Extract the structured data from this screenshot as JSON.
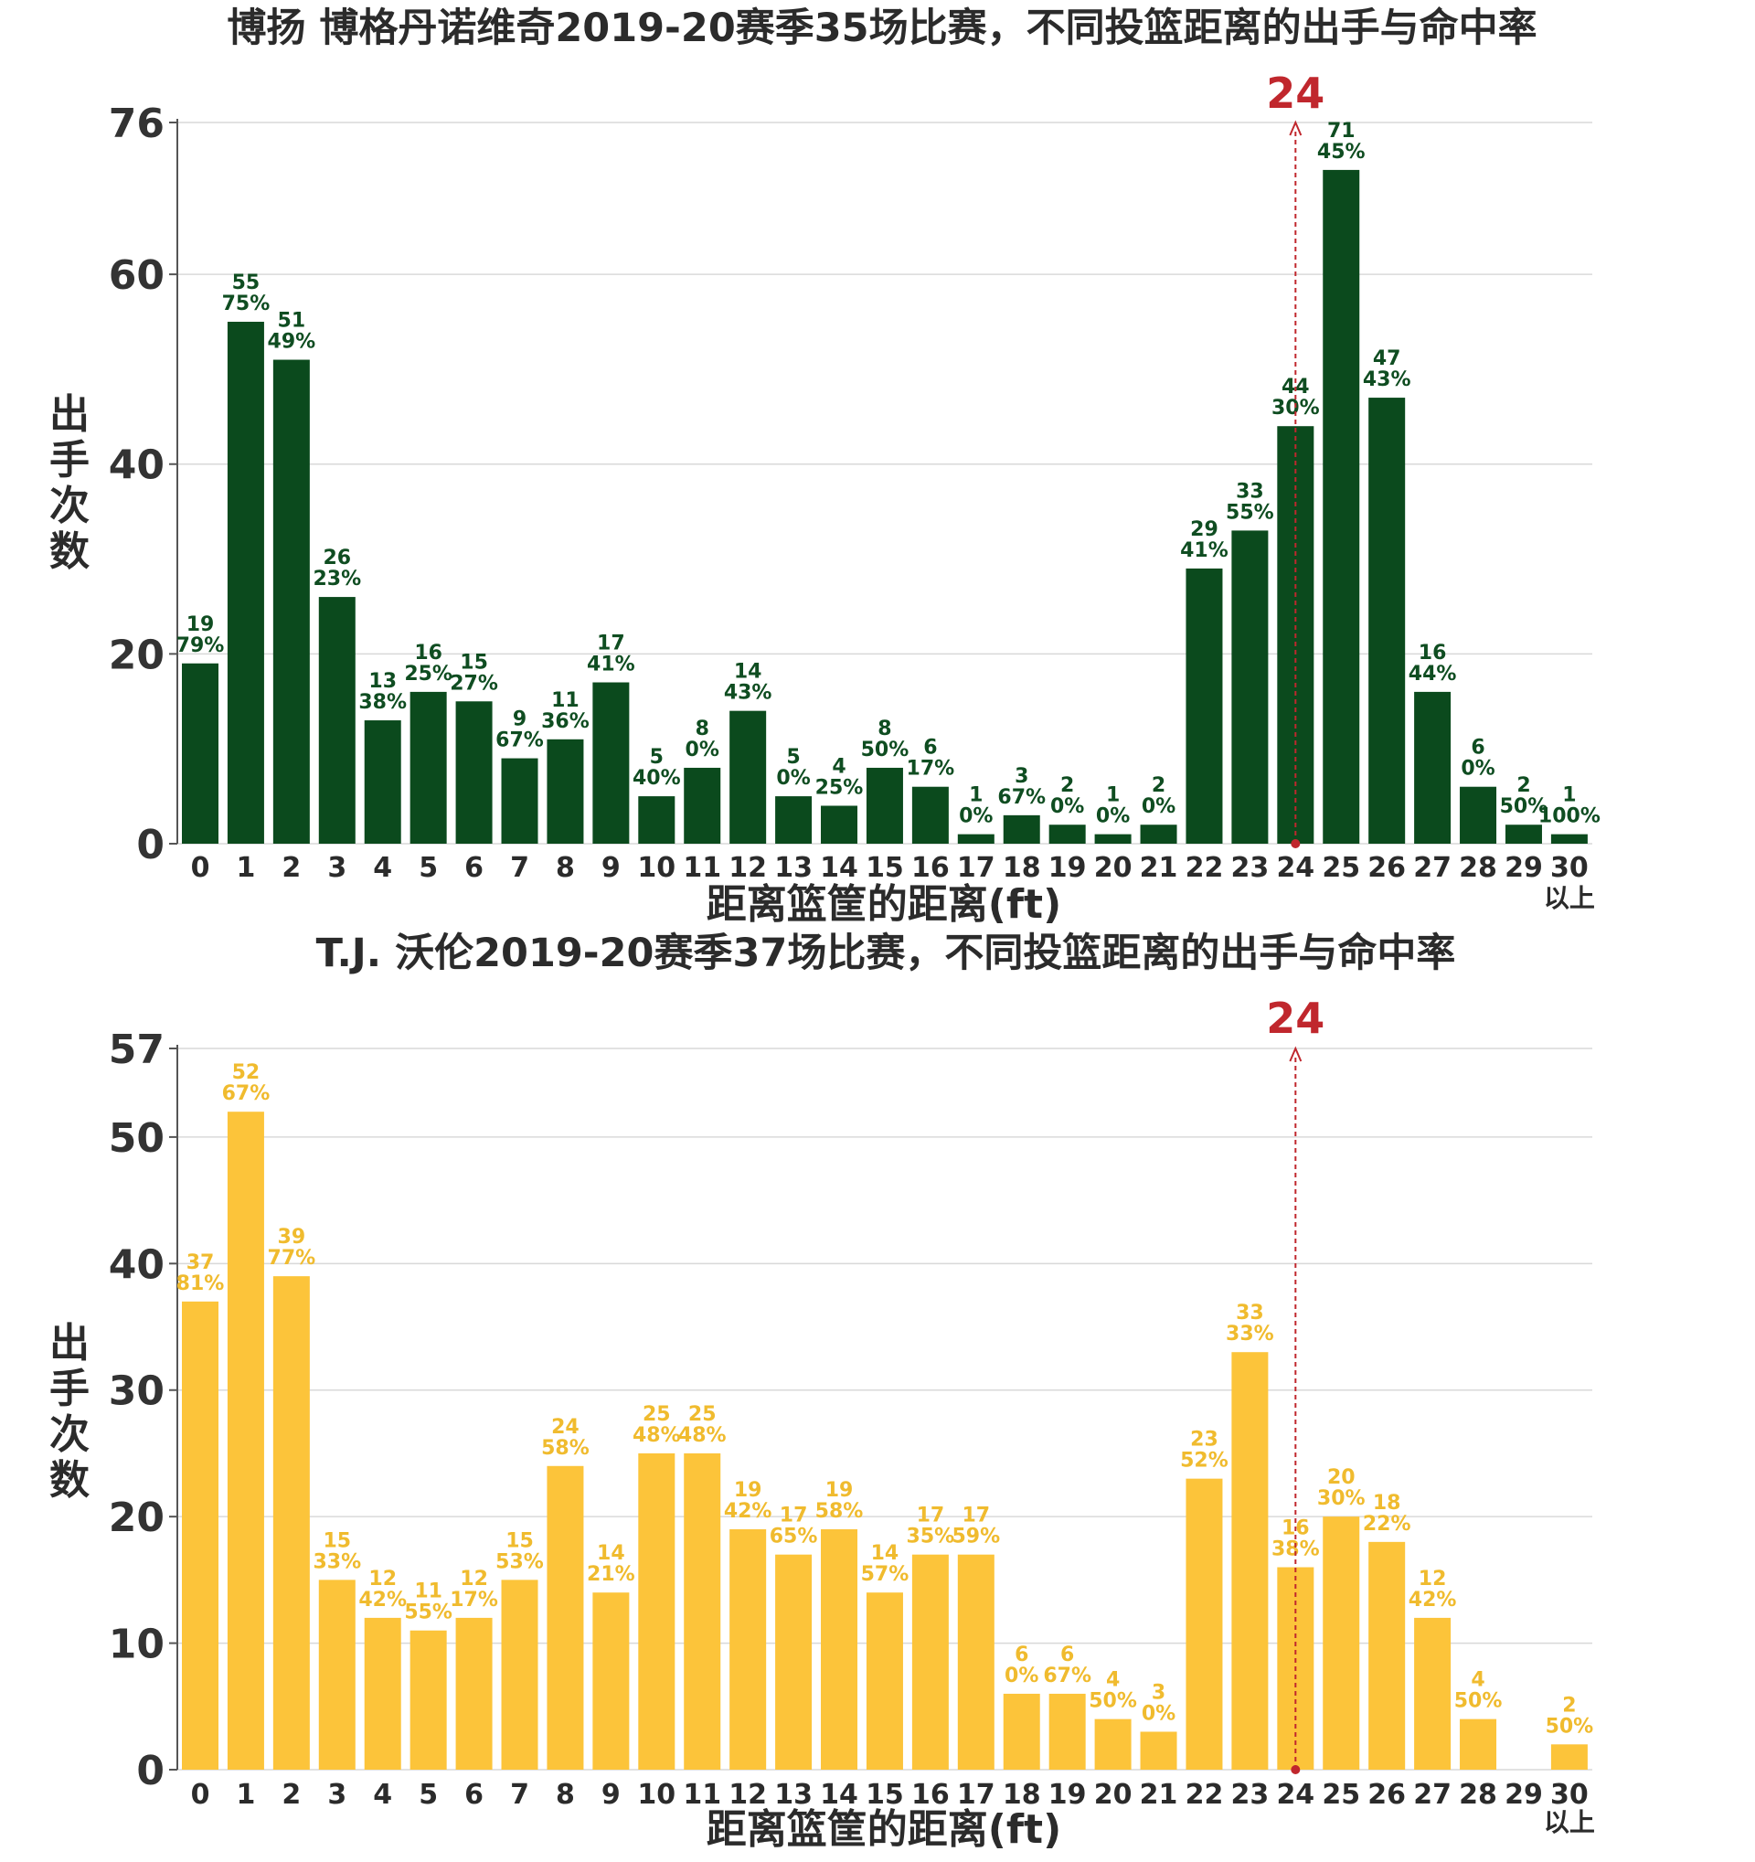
{
  "chart_data": [
    {
      "type": "bar",
      "title": "博扬 博格丹诺维奇2019-20赛季35场比赛，不同投篮距离的出手与命中率",
      "xlabel": "距离篮筐的距离(ft)",
      "ylabel": "出手次数",
      "categories": [
        "0",
        "1",
        "2",
        "3",
        "4",
        "5",
        "6",
        "7",
        "8",
        "9",
        "10",
        "11",
        "12",
        "13",
        "14",
        "15",
        "16",
        "17",
        "18",
        "19",
        "20",
        "21",
        "22",
        "23",
        "24",
        "25",
        "26",
        "27",
        "28",
        "29",
        "30"
      ],
      "last_category_suffix": "以上",
      "series": [
        {
          "values": [
            19,
            55,
            51,
            26,
            13,
            16,
            15,
            9,
            11,
            17,
            5,
            8,
            14,
            5,
            4,
            8,
            6,
            1,
            3,
            2,
            1,
            2,
            29,
            33,
            44,
            71,
            47,
            16,
            6,
            2,
            1
          ],
          "hit_rates": [
            "79%",
            "75%",
            "49%",
            "23%",
            "38%",
            "25%",
            "27%",
            "67%",
            "36%",
            "41%",
            "40%",
            "0%",
            "43%",
            "0%",
            "25%",
            "50%",
            "17%",
            "0%",
            "67%",
            "0%",
            "0%",
            "0%",
            "41%",
            "55%",
            "30%",
            "45%",
            "43%",
            "44%",
            "0%",
            "50%",
            "100%"
          ]
        }
      ],
      "ylim": [
        0,
        76
      ],
      "yticks": [
        0,
        20,
        40,
        60,
        76
      ],
      "grid": true,
      "bar_color": "#0b4a1d",
      "label_color": "#0f4d21",
      "marker": {
        "category": "24",
        "label": "24",
        "color": "#c0272d"
      }
    },
    {
      "type": "bar",
      "title": "T.J. 沃伦2019-20赛季37场比赛，不同投篮距离的出手与命中率",
      "xlabel": "距离篮筐的距离(ft)",
      "ylabel": "出手次数",
      "categories": [
        "0",
        "1",
        "2",
        "3",
        "4",
        "5",
        "6",
        "7",
        "8",
        "9",
        "10",
        "11",
        "12",
        "13",
        "14",
        "15",
        "16",
        "17",
        "18",
        "19",
        "20",
        "21",
        "22",
        "23",
        "24",
        "25",
        "26",
        "27",
        "28",
        "29",
        "30"
      ],
      "last_category_suffix": "以上",
      "series": [
        {
          "values": [
            37,
            52,
            39,
            15,
            12,
            11,
            12,
            15,
            24,
            14,
            25,
            25,
            19,
            17,
            19,
            14,
            17,
            17,
            6,
            6,
            4,
            3,
            23,
            33,
            16,
            20,
            18,
            12,
            4,
            null,
            2
          ],
          "hit_rates": [
            "81%",
            "67%",
            "77%",
            "33%",
            "42%",
            "55%",
            "17%",
            "53%",
            "58%",
            "21%",
            "48%",
            "48%",
            "42%",
            "65%",
            "58%",
            "57%",
            "35%",
            "59%",
            "0%",
            "67%",
            "50%",
            "0%",
            "52%",
            "33%",
            "38%",
            "30%",
            "22%",
            "42%",
            "50%",
            null,
            "50%"
          ]
        }
      ],
      "ylim": [
        0,
        57
      ],
      "yticks": [
        0,
        10,
        20,
        30,
        40,
        50,
        57
      ],
      "grid": true,
      "bar_color": "#fcc43a",
      "label_color": "#f0bb2e",
      "marker": {
        "category": "24",
        "label": "24",
        "color": "#c0272d"
      }
    }
  ]
}
